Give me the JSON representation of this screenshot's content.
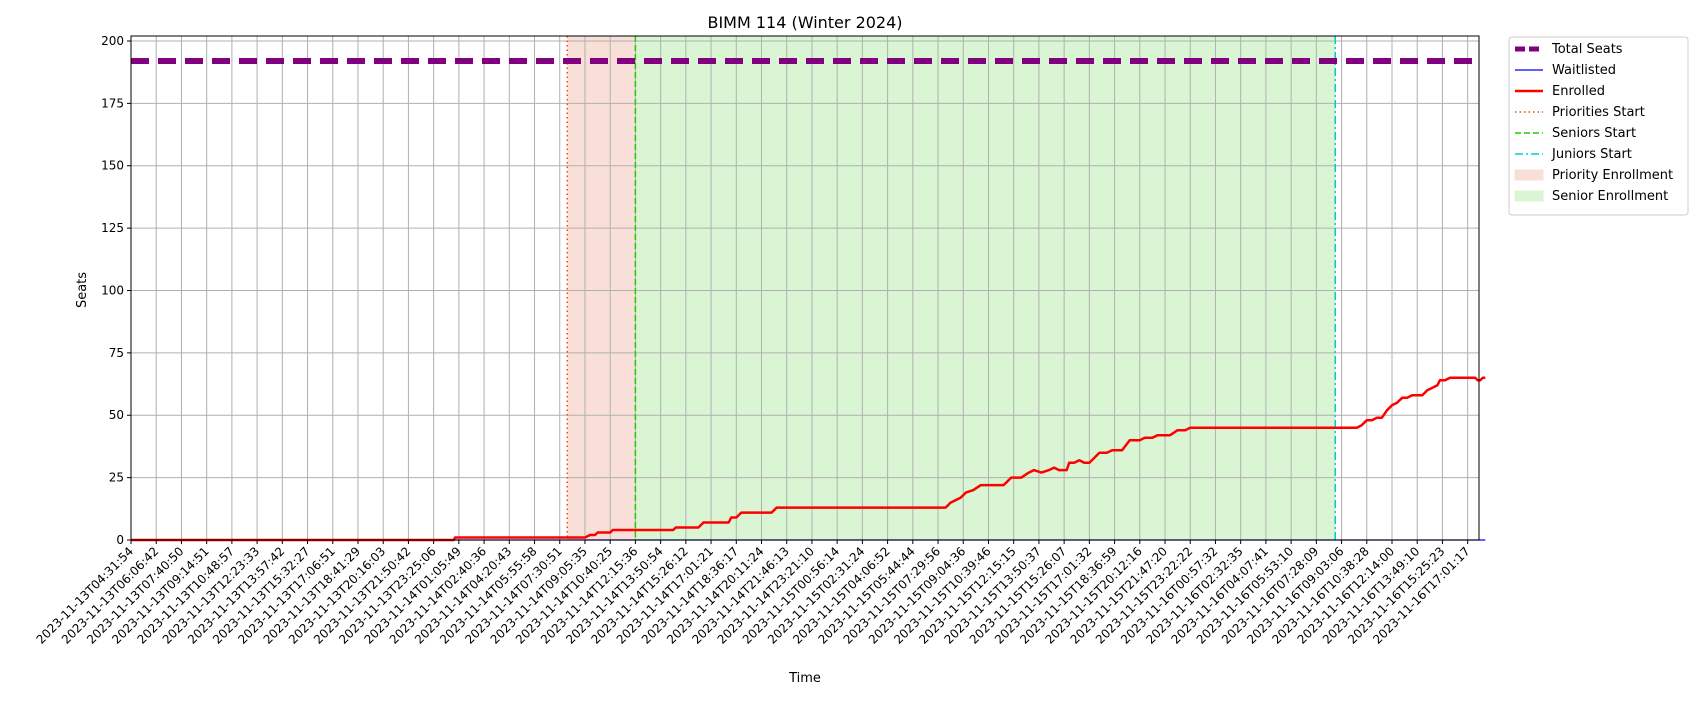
{
  "chart_data": {
    "type": "line",
    "title": "BIMM 114 (Winter 2024)",
    "xlabel": "Time",
    "ylabel": "Seats",
    "ylim": [
      0,
      202
    ],
    "yticks": [
      0,
      25,
      50,
      75,
      100,
      125,
      150,
      175,
      200
    ],
    "grid": true,
    "legend_position": "outside-right",
    "x_ticks": [
      "2023-11-13T04:31:54",
      "2023-11-13T06:06:42",
      "2023-11-13T07:40:50",
      "2023-11-13T09:14:51",
      "2023-11-13T10:48:57",
      "2023-11-13T12:23:33",
      "2023-11-13T13:57:42",
      "2023-11-13T15:32:27",
      "2023-11-13T17:06:51",
      "2023-11-13T18:41:29",
      "2023-11-13T20:16:03",
      "2023-11-13T21:50:42",
      "2023-11-13T23:25:06",
      "2023-11-14T01:05:49",
      "2023-11-14T02:40:36",
      "2023-11-14T04:20:43",
      "2023-11-14T05:55:58",
      "2023-11-14T07:30:51",
      "2023-11-14T09:05:35",
      "2023-11-14T10:40:25",
      "2023-11-14T12:15:36",
      "2023-11-14T13:50:54",
      "2023-11-14T15:26:12",
      "2023-11-14T17:01:21",
      "2023-11-14T18:36:17",
      "2023-11-14T20:11:24",
      "2023-11-14T21:46:13",
      "2023-11-14T23:21:10",
      "2023-11-15T00:56:14",
      "2023-11-15T02:31:24",
      "2023-11-15T04:06:52",
      "2023-11-15T05:44:44",
      "2023-11-15T07:29:56",
      "2023-11-15T09:04:36",
      "2023-11-15T10:39:46",
      "2023-11-15T12:15:15",
      "2023-11-15T13:50:37",
      "2023-11-15T15:26:07",
      "2023-11-15T17:01:32",
      "2023-11-15T18:36:59",
      "2023-11-15T20:12:16",
      "2023-11-15T21:47:20",
      "2023-11-15T23:22:22",
      "2023-11-16T00:57:32",
      "2023-11-16T02:32:35",
      "2023-11-16T04:07:41",
      "2023-11-16T05:53:10",
      "2023-11-16T07:28:09",
      "2023-11-16T09:03:06",
      "2023-11-16T10:38:28",
      "2023-11-16T12:14:00",
      "2023-11-16T13:49:10",
      "2023-11-16T15:25:23",
      "2023-11-16T17:01:17"
    ],
    "x_tick_max": 53.7,
    "series": [
      {
        "name": "Total Seats",
        "style": "thick-dashed",
        "color": "#800080",
        "value": 192
      },
      {
        "name": "Waitlisted",
        "style": "solid-thin",
        "color": "#0000ff",
        "points": [
          [
            0,
            0
          ],
          [
            53.7,
            0
          ]
        ]
      },
      {
        "name": "Enrolled",
        "style": "solid",
        "color": "#ff0000",
        "points": [
          [
            0,
            0
          ],
          [
            12.8,
            0
          ],
          [
            12.85,
            1
          ],
          [
            17.7,
            1
          ],
          [
            18.0,
            1
          ],
          [
            18.2,
            2
          ],
          [
            18.4,
            2
          ],
          [
            18.5,
            3
          ],
          [
            19.0,
            3
          ],
          [
            19.1,
            4
          ],
          [
            21.5,
            4
          ],
          [
            21.6,
            5
          ],
          [
            22.5,
            5
          ],
          [
            22.7,
            7
          ],
          [
            23.7,
            7
          ],
          [
            23.8,
            9
          ],
          [
            24.0,
            9
          ],
          [
            24.2,
            11
          ],
          [
            25.4,
            11
          ],
          [
            25.6,
            13
          ],
          [
            32.3,
            13
          ],
          [
            32.5,
            15
          ],
          [
            32.7,
            16
          ],
          [
            32.9,
            17
          ],
          [
            33.1,
            19
          ],
          [
            33.4,
            20
          ],
          [
            33.7,
            22
          ],
          [
            34.6,
            22
          ],
          [
            34.9,
            25
          ],
          [
            35.3,
            25
          ],
          [
            35.6,
            27
          ],
          [
            35.8,
            28
          ],
          [
            36.1,
            27
          ],
          [
            36.4,
            28
          ],
          [
            36.6,
            29
          ],
          [
            36.8,
            28
          ],
          [
            37.1,
            28
          ],
          [
            37.2,
            31
          ],
          [
            37.4,
            31
          ],
          [
            37.6,
            32
          ],
          [
            37.8,
            31
          ],
          [
            38.0,
            31
          ],
          [
            38.2,
            33
          ],
          [
            38.4,
            35
          ],
          [
            38.7,
            35
          ],
          [
            38.9,
            36
          ],
          [
            39.3,
            36
          ],
          [
            39.6,
            40
          ],
          [
            40.0,
            40
          ],
          [
            40.2,
            41
          ],
          [
            40.5,
            41
          ],
          [
            40.7,
            42
          ],
          [
            41.2,
            42
          ],
          [
            41.5,
            44
          ],
          [
            41.8,
            44
          ],
          [
            42.0,
            45
          ],
          [
            48.6,
            45
          ],
          [
            48.8,
            46
          ],
          [
            49.0,
            48
          ],
          [
            49.2,
            48
          ],
          [
            49.4,
            49
          ],
          [
            49.6,
            49
          ],
          [
            49.8,
            52
          ],
          [
            50.0,
            54
          ],
          [
            50.2,
            55
          ],
          [
            50.4,
            57
          ],
          [
            50.6,
            57
          ],
          [
            50.8,
            58
          ],
          [
            51.2,
            58
          ],
          [
            51.4,
            60
          ],
          [
            51.6,
            61
          ],
          [
            51.8,
            62
          ],
          [
            51.9,
            64
          ],
          [
            52.1,
            64
          ],
          [
            52.3,
            65
          ],
          [
            53.3,
            65
          ],
          [
            53.4,
            64
          ],
          [
            53.5,
            64
          ],
          [
            53.6,
            65
          ],
          [
            53.7,
            65
          ]
        ]
      }
    ],
    "events": [
      {
        "name": "Priorities Start",
        "x": 17.3,
        "style": "dotted",
        "color": "#ff4500"
      },
      {
        "name": "Seniors Start",
        "x": 20.0,
        "style": "dashed",
        "color": "#22cc00"
      },
      {
        "name": "Juniors Start",
        "x": 47.75,
        "style": "dashdot",
        "color": "#00cccc"
      }
    ],
    "spans": [
      {
        "name": "Priority Enrollment",
        "x0": 17.3,
        "x1": 20.0,
        "color": "#f8e0d8"
      },
      {
        "name": "Senior Enrollment",
        "x0": 20.0,
        "x1": 47.75,
        "color": "#d9f5d3"
      }
    ]
  }
}
